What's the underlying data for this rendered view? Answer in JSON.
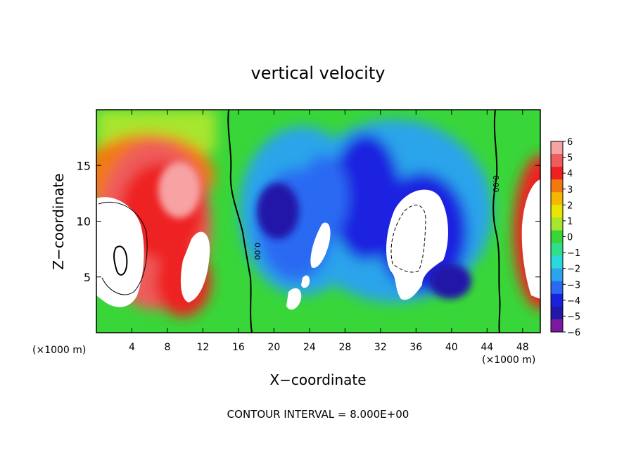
{
  "chart_data": {
    "type": "heatmap",
    "title": "vertical velocity",
    "xlabel": "X−coordinate",
    "ylabel": "Z−coordinate",
    "x_unit_left": "(×1000 m)",
    "x_unit_right": "(×1000 m)",
    "footer": "CONTOUR INTERVAL = 8.000E+00",
    "contour_label": "0.00",
    "xlim": [
      0,
      50
    ],
    "ylim": [
      0,
      20
    ],
    "x_ticks": [
      "4",
      "8",
      "12",
      "16",
      "20",
      "24",
      "28",
      "32",
      "36",
      "40",
      "44",
      "48"
    ],
    "y_ticks": [
      "5",
      "10",
      "15"
    ],
    "colorbar": {
      "min": -6,
      "max": 6,
      "levels": [
        "6",
        "5",
        "4",
        "3",
        "2",
        "1",
        "0",
        "−1",
        "−2",
        "−3",
        "−4",
        "−5",
        "−6"
      ],
      "colors": [
        "#f7a3a3",
        "#ef5c5c",
        "#ee2020",
        "#f17a10",
        "#f5b800",
        "#e6e600",
        "#a6e62e",
        "#39d639",
        "#31df8a",
        "#2ad9d9",
        "#2aa4ea",
        "#2a6af2",
        "#1a20e0",
        "#2018a8",
        "#7a18a0"
      ]
    }
  }
}
